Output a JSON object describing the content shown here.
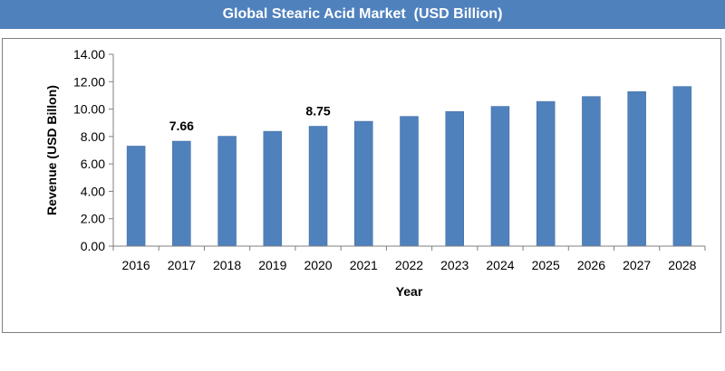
{
  "chart_data": {
    "type": "bar",
    "title": "Global Stearic Acid Market  (USD Billion)",
    "xlabel": "Year",
    "ylabel": "Revenue (USD Billon)",
    "categories": [
      "2016",
      "2017",
      "2018",
      "2019",
      "2020",
      "2021",
      "2022",
      "2023",
      "2024",
      "2025",
      "2026",
      "2027",
      "2028"
    ],
    "values": [
      7.3,
      7.66,
      8.02,
      8.38,
      8.75,
      9.11,
      9.47,
      9.83,
      10.2,
      10.56,
      10.92,
      11.28,
      11.65
    ],
    "data_labels": [
      {
        "category": "2017",
        "text": "7.66"
      },
      {
        "category": "2020",
        "text": "8.75"
      }
    ],
    "ylim": [
      0,
      14
    ],
    "yticks": [
      "0.00",
      "2.00",
      "4.00",
      "6.00",
      "8.00",
      "10.00",
      "12.00",
      "14.00"
    ],
    "bar_color": "#4f81bd",
    "title_bar_color": "#4f81bd",
    "grid": false,
    "legend": false
  }
}
